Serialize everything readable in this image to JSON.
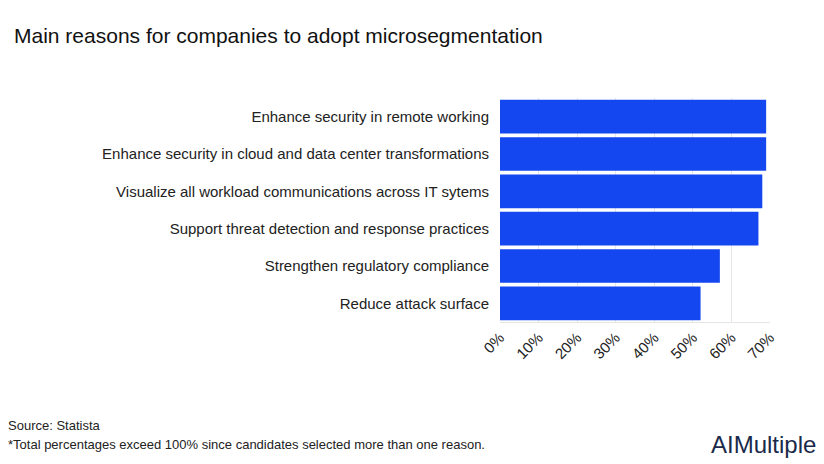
{
  "chart_data": {
    "type": "bar",
    "orientation": "horizontal",
    "title": "Main reasons for companies to adopt microsegmentation",
    "categories": [
      "Enhance security in remote working",
      "Enhance security in cloud and data center transformations",
      "Visualize all workload communications across IT sytems",
      "Support threat detection and response practices",
      "Strengthen regulatory compliance",
      "Reduce attack surface"
    ],
    "values": [
      69,
      69,
      68,
      67,
      57,
      52
    ],
    "color": "#1447f0",
    "xlim": [
      0,
      70
    ],
    "xticks": [
      {
        "value": 0,
        "label": "0%"
      },
      {
        "value": 10,
        "label": "10%"
      },
      {
        "value": 20,
        "label": "20%"
      },
      {
        "value": 30,
        "label": "30%"
      },
      {
        "value": 40,
        "label": "40%"
      },
      {
        "value": 50,
        "label": "50%"
      },
      {
        "value": 60,
        "label": "60%"
      },
      {
        "value": 70,
        "label": "70%"
      }
    ],
    "grid": true,
    "annotations": [
      "Source: Statista",
      "*Total percentages exceed 100% since candidates selected more than one reason.",
      "AIMultiple"
    ]
  }
}
